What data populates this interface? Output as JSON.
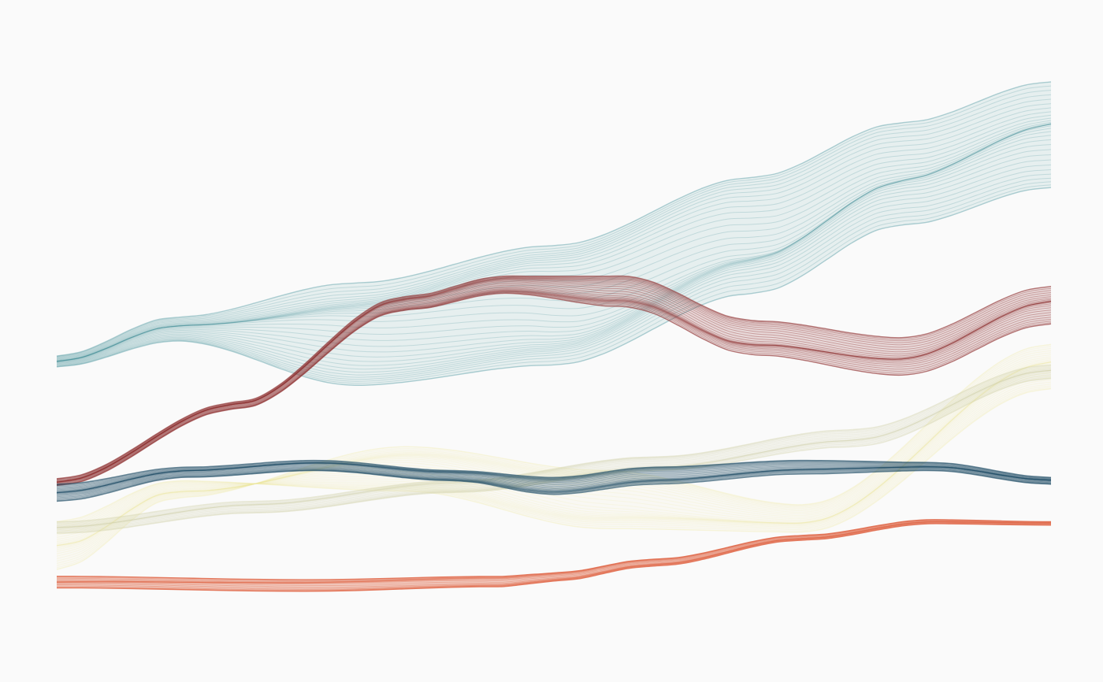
{
  "artwork": {
    "background": "#fafafa",
    "ribbons": [
      {
        "name": "teal",
        "color": "#3f8f98",
        "opacity": 0.1,
        "strands": 34,
        "edgeA": [
          [
            0.0,
            0.522
          ],
          [
            0.12,
            0.465
          ],
          [
            0.3,
            0.415
          ],
          [
            0.5,
            0.36
          ],
          [
            0.7,
            0.26
          ],
          [
            0.85,
            0.18
          ],
          [
            1.0,
            0.12
          ]
        ],
        "edgeB": [
          [
            0.0,
            0.538
          ],
          [
            0.12,
            0.5
          ],
          [
            0.3,
            0.565
          ],
          [
            0.5,
            0.535
          ],
          [
            0.7,
            0.43
          ],
          [
            0.85,
            0.33
          ],
          [
            1.0,
            0.275
          ]
        ]
      },
      {
        "name": "crimson",
        "color": "#8e2f2f",
        "opacity": 0.16,
        "strands": 26,
        "edgeA": [
          [
            0.0,
            0.702
          ],
          [
            0.18,
            0.59
          ],
          [
            0.35,
            0.435
          ],
          [
            0.45,
            0.405
          ],
          [
            0.57,
            0.405
          ],
          [
            0.7,
            0.47
          ],
          [
            0.85,
            0.495
          ],
          [
            1.0,
            0.42
          ]
        ],
        "edgeB": [
          [
            0.0,
            0.712
          ],
          [
            0.18,
            0.6
          ],
          [
            0.35,
            0.455
          ],
          [
            0.45,
            0.43
          ],
          [
            0.57,
            0.45
          ],
          [
            0.7,
            0.52
          ],
          [
            0.85,
            0.55
          ],
          [
            1.0,
            0.475
          ]
        ]
      },
      {
        "name": "pale-yellow",
        "color": "#eeeaa0",
        "opacity": 0.08,
        "strands": 30,
        "edgeA": [
          [
            0.0,
            0.835
          ],
          [
            0.12,
            0.73
          ],
          [
            0.35,
            0.655
          ],
          [
            0.55,
            0.69
          ],
          [
            0.75,
            0.74
          ],
          [
            1.0,
            0.505
          ]
        ],
        "edgeB": [
          [
            0.0,
            0.765
          ],
          [
            0.12,
            0.705
          ],
          [
            0.35,
            0.72
          ],
          [
            0.55,
            0.775
          ],
          [
            0.75,
            0.78
          ],
          [
            1.0,
            0.57
          ]
        ]
      },
      {
        "name": "khaki",
        "color": "#cfcfa6",
        "opacity": 0.1,
        "strands": 18,
        "edgeA": [
          [
            0.0,
            0.765
          ],
          [
            0.2,
            0.735
          ],
          [
            0.4,
            0.705
          ],
          [
            0.6,
            0.67
          ],
          [
            0.8,
            0.63
          ],
          [
            1.0,
            0.535
          ]
        ],
        "edgeB": [
          [
            0.0,
            0.782
          ],
          [
            0.2,
            0.752
          ],
          [
            0.4,
            0.722
          ],
          [
            0.6,
            0.69
          ],
          [
            0.8,
            0.655
          ],
          [
            1.0,
            0.555
          ]
        ]
      },
      {
        "name": "navy",
        "color": "#1f4d66",
        "opacity": 0.16,
        "strands": 26,
        "edgeA": [
          [
            0.0,
            0.71
          ],
          [
            0.13,
            0.685
          ],
          [
            0.26,
            0.675
          ],
          [
            0.4,
            0.69
          ],
          [
            0.5,
            0.7
          ],
          [
            0.6,
            0.685
          ],
          [
            0.75,
            0.675
          ],
          [
            0.88,
            0.678
          ],
          [
            1.0,
            0.7
          ]
        ],
        "edgeB": [
          [
            0.0,
            0.735
          ],
          [
            0.13,
            0.7
          ],
          [
            0.26,
            0.69
          ],
          [
            0.4,
            0.705
          ],
          [
            0.5,
            0.725
          ],
          [
            0.6,
            0.71
          ],
          [
            0.75,
            0.695
          ],
          [
            0.88,
            0.69
          ],
          [
            1.0,
            0.71
          ]
        ]
      },
      {
        "name": "coral",
        "color": "#e0694a",
        "opacity": 0.22,
        "strands": 16,
        "edgeA": [
          [
            0.0,
            0.845
          ],
          [
            0.25,
            0.85
          ],
          [
            0.45,
            0.845
          ],
          [
            0.5,
            0.84
          ],
          [
            0.6,
            0.82
          ],
          [
            0.75,
            0.785
          ],
          [
            0.88,
            0.762
          ],
          [
            1.0,
            0.765
          ]
        ],
        "edgeB": [
          [
            0.0,
            0.862
          ],
          [
            0.25,
            0.867
          ],
          [
            0.45,
            0.86
          ],
          [
            0.5,
            0.852
          ],
          [
            0.6,
            0.83
          ],
          [
            0.75,
            0.792
          ],
          [
            0.88,
            0.768
          ],
          [
            1.0,
            0.77
          ]
        ]
      }
    ]
  }
}
